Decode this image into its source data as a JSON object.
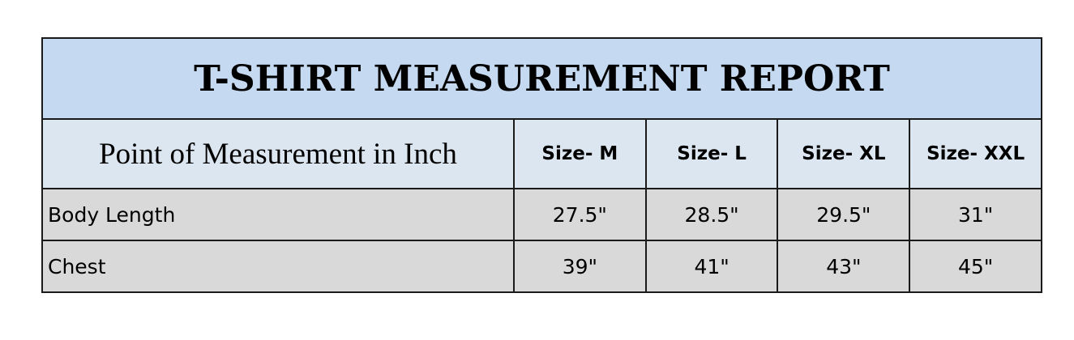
{
  "title": "T-SHIRT MEASUREMENT REPORT",
  "header": {
    "point": "Point of Measurement in Inch",
    "sizes": [
      "Size- M",
      "Size- L",
      "Size- XL",
      "Size- XXL"
    ]
  },
  "rows": [
    {
      "label": "Body Length",
      "values": [
        "27.5\"",
        "28.5\"",
        "29.5\"",
        "31\""
      ]
    },
    {
      "label": "Chest",
      "values": [
        "39\"",
        "41\"",
        "43\"",
        "45\""
      ]
    }
  ],
  "colors": {
    "title_bg": "#c5d9f1",
    "header_bg": "#dce6f1",
    "row_bg": "#d9d9d9"
  }
}
